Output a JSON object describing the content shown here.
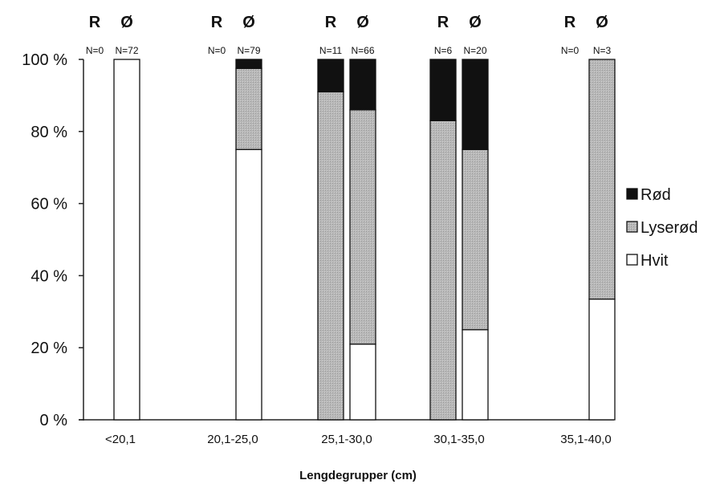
{
  "chart_data": {
    "type": "bar",
    "stacked": "percent",
    "categories": [
      "<20,1",
      "20,1-25,0",
      "25,1-30,0",
      "30,1-35,0",
      "35,1-40,0"
    ],
    "groups": [
      "R",
      "Ø"
    ],
    "xlabel": "Lengdegrupper (cm)",
    "ylabel": "",
    "ylim": [
      0,
      100
    ],
    "yticks": [
      "0 %",
      "20 %",
      "40 %",
      "60 %",
      "80 %",
      "100 %"
    ],
    "legend_position": "right",
    "bars": [
      {
        "category": "<20,1",
        "group": "R",
        "n_label": "N=0",
        "values": {
          "Hvit": 0,
          "Lyserød": 0,
          "Rød": 0
        }
      },
      {
        "category": "<20,1",
        "group": "Ø",
        "n_label": "N=72",
        "values": {
          "Hvit": 100,
          "Lyserød": 0,
          "Rød": 0
        }
      },
      {
        "category": "20,1-25,0",
        "group": "R",
        "n_label": "N=0",
        "values": {
          "Hvit": 0,
          "Lyserød": 0,
          "Rød": 0
        }
      },
      {
        "category": "20,1-25,0",
        "group": "Ø",
        "n_label": "N=79",
        "values": {
          "Hvit": 75,
          "Lyserød": 22.5,
          "Rød": 2.5
        }
      },
      {
        "category": "25,1-30,0",
        "group": "R",
        "n_label": "N=11",
        "values": {
          "Hvit": 0,
          "Lyserød": 91,
          "Rød": 9
        }
      },
      {
        "category": "25,1-30,0",
        "group": "Ø",
        "n_label": "N=66",
        "values": {
          "Hvit": 21,
          "Lyserød": 65,
          "Rød": 14
        }
      },
      {
        "category": "30,1-35,0",
        "group": "R",
        "n_label": "N=6",
        "values": {
          "Hvit": 0,
          "Lyserød": 83,
          "Rød": 17
        }
      },
      {
        "category": "30,1-35,0",
        "group": "Ø",
        "n_label": "N=20",
        "values": {
          "Hvit": 25,
          "Lyserød": 50,
          "Rød": 25
        }
      },
      {
        "category": "35,1-40,0",
        "group": "R",
        "n_label": "N=0",
        "values": {
          "Hvit": 0,
          "Lyserød": 0,
          "Rød": 0
        }
      },
      {
        "category": "35,1-40,0",
        "group": "Ø",
        "n_label": "N=3",
        "values": {
          "Hvit": 33.5,
          "Lyserød": 66.5,
          "Rød": 0
        }
      }
    ],
    "series": [
      {
        "name": "Rød",
        "color": "#111111"
      },
      {
        "name": "Lyserød",
        "color": "#b4b4b4"
      },
      {
        "name": "Hvit",
        "color": "#ffffff"
      }
    ]
  }
}
